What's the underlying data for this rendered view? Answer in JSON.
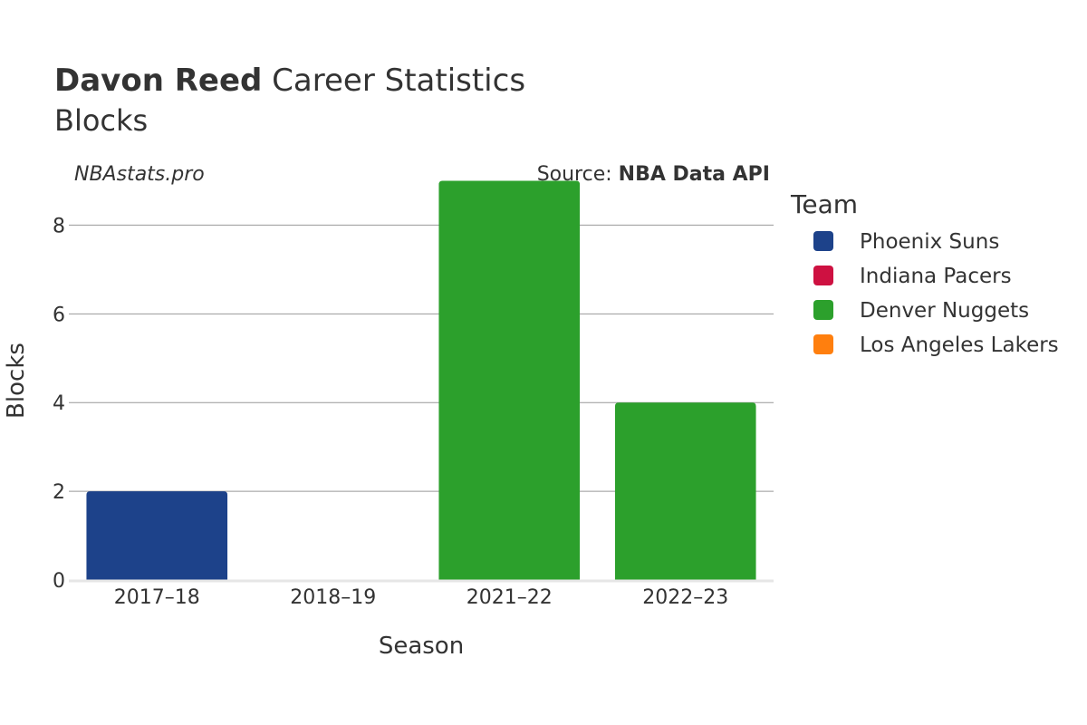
{
  "header": {
    "player": "Davon Reed",
    "title_rest": " Career Statistics",
    "subtitle": "Blocks",
    "watermark": "NBAstats.pro",
    "source_prefix": "Source: ",
    "source_name": "NBA Data API"
  },
  "legend": {
    "title": "Team",
    "items": [
      {
        "label": "Phoenix Suns",
        "color": "#1d428a"
      },
      {
        "label": "Indiana Pacers",
        "color": "#ce1141"
      },
      {
        "label": "Denver Nuggets",
        "color": "#2ca02c"
      },
      {
        "label": "Los Angeles Lakers",
        "color": "#ff7f0e"
      }
    ]
  },
  "chart_data": {
    "type": "bar",
    "title": "Davon Reed Career Statistics",
    "subtitle": "Blocks",
    "xlabel": "Season",
    "ylabel": "Blocks",
    "categories": [
      "2017–18",
      "2018–19",
      "2021–22",
      "2022–23"
    ],
    "series": [
      {
        "name": "Phoenix Suns",
        "color": "#1d428a",
        "values": [
          2,
          null,
          null,
          null
        ]
      },
      {
        "name": "Indiana Pacers",
        "color": "#ce1141",
        "values": [
          null,
          0,
          null,
          null
        ]
      },
      {
        "name": "Denver Nuggets",
        "color": "#2ca02c",
        "values": [
          null,
          null,
          9,
          4
        ]
      },
      {
        "name": "Los Angeles Lakers",
        "color": "#ff7f0e",
        "values": [
          null,
          null,
          null,
          null
        ]
      }
    ],
    "ylim": [
      0,
      9.5
    ],
    "yticks": [
      0,
      2,
      4,
      6,
      8
    ],
    "grid": true,
    "legend_position": "right"
  }
}
